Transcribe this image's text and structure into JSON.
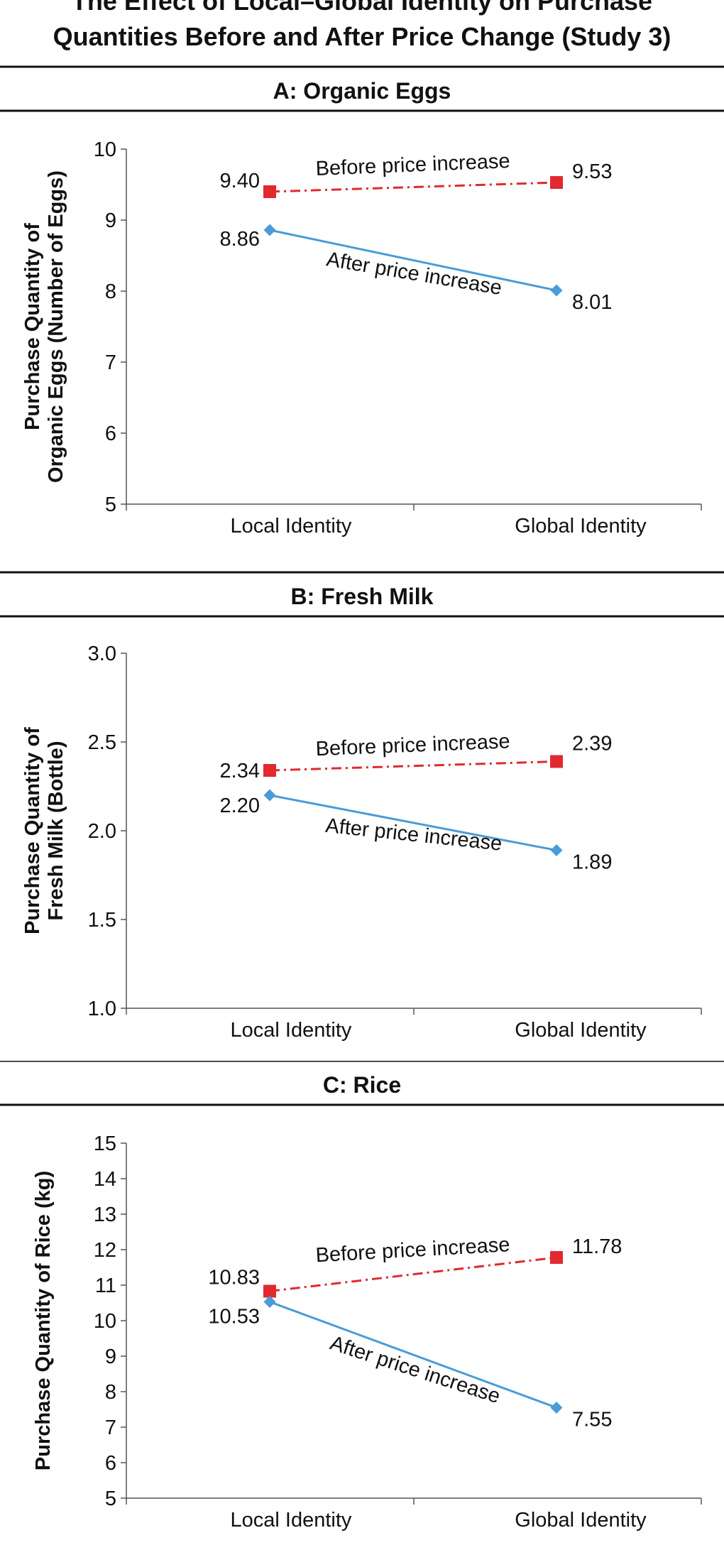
{
  "figure": {
    "title_line1": "The Effect of Local–Global Identity on Purchase",
    "title_line2": "Quantities Before and After Price Change (Study 3)"
  },
  "colors": {
    "before": "#e02a2f",
    "after": "#4a9bd8",
    "axis": "#555555",
    "rule": "#111111"
  },
  "chart_data": [
    {
      "type": "line",
      "title": "A: Organic Eggs",
      "ylabel_lines": [
        "Purchase Quantity of",
        "Organic Eggs (Number of Eggs)"
      ],
      "categories": [
        "Local Identity",
        "Global Identity"
      ],
      "ylim": [
        5,
        10
      ],
      "yticks": [
        "5",
        "6",
        "7",
        "8",
        "9",
        "10"
      ],
      "series": [
        {
          "name": "Before price increase",
          "values": [
            9.4,
            9.53
          ],
          "labels": [
            "9.40",
            "9.53"
          ],
          "marker": "square",
          "line": "dash-dot",
          "color": "#e02a2f"
        },
        {
          "name": "After price increase",
          "values": [
            8.86,
            8.01
          ],
          "labels": [
            "8.86",
            "8.01"
          ],
          "marker": "diamond",
          "line": "solid",
          "color": "#4a9bd8"
        }
      ]
    },
    {
      "type": "line",
      "title": "B: Fresh Milk",
      "ylabel_lines": [
        "Purchase Quantity of",
        "Fresh Milk (Bottle)"
      ],
      "categories": [
        "Local Identity",
        "Global Identity"
      ],
      "ylim": [
        1.0,
        3.0
      ],
      "yticks": [
        "1.0",
        "1.5",
        "2.0",
        "2.5",
        "3.0"
      ],
      "series": [
        {
          "name": "Before price increase",
          "values": [
            2.34,
            2.39
          ],
          "labels": [
            "2.34",
            "2.39"
          ],
          "marker": "square",
          "line": "dash-dot",
          "color": "#e02a2f"
        },
        {
          "name": "After price increase",
          "values": [
            2.2,
            1.89
          ],
          "labels": [
            "2.20",
            "1.89"
          ],
          "marker": "diamond",
          "line": "solid",
          "color": "#4a9bd8"
        }
      ]
    },
    {
      "type": "line",
      "title": "C: Rice",
      "ylabel_lines": [
        "Purchase Quantity of Rice (kg)"
      ],
      "categories": [
        "Local Identity",
        "Global Identity"
      ],
      "ylim": [
        5,
        15
      ],
      "yticks": [
        "5",
        "6",
        "7",
        "8",
        "9",
        "10",
        "11",
        "12",
        "13",
        "14",
        "15"
      ],
      "series": [
        {
          "name": "Before price increase",
          "values": [
            10.83,
            11.78
          ],
          "labels": [
            "10.83",
            "11.78"
          ],
          "marker": "square",
          "line": "dash-dot",
          "color": "#e02a2f"
        },
        {
          "name": "After price increase",
          "values": [
            10.53,
            7.55
          ],
          "labels": [
            "10.53",
            "7.55"
          ],
          "marker": "diamond",
          "line": "solid",
          "color": "#4a9bd8"
        }
      ]
    }
  ]
}
